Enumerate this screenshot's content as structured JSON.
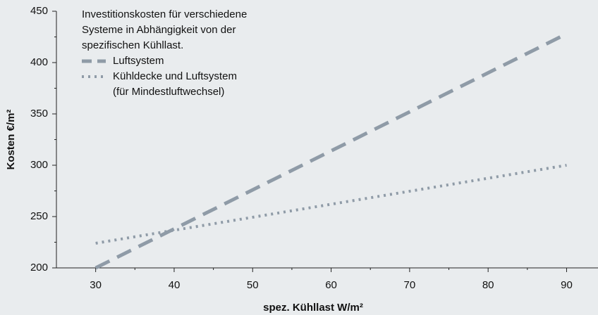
{
  "chart_data": {
    "type": "line",
    "title": [
      "Investitionskosten für verschiedene",
      "Systeme in Abhängigkeit von der",
      "spezifischen Kühllast."
    ],
    "x_label": "spez. Kühllast W/m²",
    "y_label": "Kosten €/m²",
    "x": [
      30,
      90
    ],
    "series": [
      {
        "name": "Luftsystem",
        "color": "#8f9ba7",
        "style": "dashed",
        "values": [
          200,
          428
        ]
      },
      {
        "name": "Kühldecke und Luftsystem\n(für Mindestluftwechsel)",
        "color": "#8f9ba7",
        "style": "dotted",
        "values": [
          224,
          300
        ]
      }
    ],
    "xlim": [
      25,
      94
    ],
    "xticks": [
      30,
      40,
      50,
      60,
      70,
      80,
      90
    ],
    "xticks_minor": [
      35,
      45,
      55,
      65,
      75,
      85
    ],
    "ylim": [
      200,
      450
    ],
    "yticks": [
      200,
      250,
      300,
      350,
      400,
      450
    ],
    "yticks_minor": [
      225,
      275,
      325,
      375,
      425
    ],
    "legend": "upper left"
  }
}
